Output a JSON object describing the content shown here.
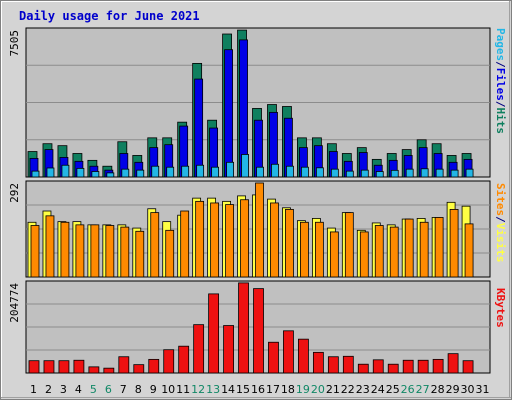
{
  "title": "Daily usage for June 2021",
  "colors": {
    "hits": "#0f7f5f",
    "files": "#0000e6",
    "pages": "#22b6e6",
    "visits": "#ffff44",
    "sites": "#ff8a00",
    "kbytes": "#ee1111",
    "weekend_day": "#118866",
    "weekday": "#000080",
    "title": "#0000cc",
    "plot_bg": "#c0c0c0",
    "frame_bg": "#d4d4d4"
  },
  "side_labels": {
    "top": [
      {
        "text": "Pages",
        "color": "#22b6e6"
      },
      {
        "text": "/",
        "color": "#000080"
      },
      {
        "text": "Files",
        "color": "#0000e6"
      },
      {
        "text": "/",
        "color": "#000080"
      },
      {
        "text": "Hits",
        "color": "#0f7f5f"
      }
    ],
    "middle": [
      {
        "text": "Sites",
        "color": "#ff8a00"
      },
      {
        "text": "/",
        "color": "#000080"
      },
      {
        "text": "Visits",
        "color": "#ffff44"
      }
    ],
    "bottom": [
      {
        "text": "KBytes",
        "color": "#ee1111"
      }
    ]
  },
  "chart_data": [
    {
      "type": "bar",
      "panel": "top",
      "ymax_label": "7505",
      "ylim": [
        0,
        7505
      ],
      "grid": true,
      "categories": [
        "1",
        "2",
        "3",
        "4",
        "5",
        "6",
        "7",
        "8",
        "9",
        "10",
        "11",
        "12",
        "13",
        "14",
        "15",
        "16",
        "17",
        "18",
        "19",
        "20",
        "21",
        "22",
        "23",
        "24",
        "25",
        "26",
        "27",
        "28",
        "29",
        "30",
        "31"
      ],
      "weekend_days": [
        "5",
        "6",
        "12",
        "13",
        "19",
        "20",
        "26",
        "27"
      ],
      "series": [
        {
          "name": "Hits",
          "values": [
            1300,
            1700,
            1600,
            1200,
            850,
            550,
            1800,
            1100,
            2000,
            2000,
            2800,
            5800,
            2900,
            7300,
            7500,
            3500,
            3700,
            3600,
            2000,
            2000,
            1700,
            1200,
            1500,
            900,
            1200,
            1400,
            1900,
            1700,
            1100,
            1200,
            0
          ]
        },
        {
          "name": "Files",
          "values": [
            950,
            1400,
            1000,
            800,
            550,
            350,
            1200,
            750,
            1500,
            1650,
            2600,
            5000,
            2500,
            6500,
            7000,
            2900,
            3300,
            3000,
            1500,
            1600,
            1300,
            800,
            1250,
            600,
            850,
            1100,
            1500,
            1200,
            750,
            900,
            0
          ]
        },
        {
          "name": "Pages",
          "values": [
            300,
            460,
            600,
            440,
            280,
            210,
            400,
            350,
            550,
            500,
            550,
            600,
            500,
            750,
            1150,
            500,
            650,
            550,
            500,
            470,
            400,
            300,
            350,
            280,
            340,
            400,
            420,
            400,
            350,
            400,
            0
          ]
        }
      ]
    },
    {
      "type": "bar",
      "panel": "middle",
      "ymax_label": "292",
      "ylim": [
        0,
        292
      ],
      "grid": true,
      "categories": [
        "1",
        "2",
        "3",
        "4",
        "5",
        "6",
        "7",
        "8",
        "9",
        "10",
        "11",
        "12",
        "13",
        "14",
        "15",
        "16",
        "17",
        "18",
        "19",
        "20",
        "21",
        "22",
        "23",
        "24",
        "25",
        "26",
        "27",
        "28",
        "29",
        "30",
        "31"
      ],
      "series": [
        {
          "name": "Visits",
          "values": [
            170,
            205,
            172,
            172,
            162,
            162,
            162,
            152,
            212,
            172,
            192,
            245,
            245,
            235,
            252,
            255,
            242,
            215,
            175,
            182,
            152,
            200,
            145,
            168,
            162,
            180,
            182,
            185,
            232,
            220,
            0
          ]
        },
        {
          "name": "Sites",
          "values": [
            160,
            190,
            170,
            162,
            162,
            160,
            155,
            142,
            200,
            145,
            205,
            235,
            230,
            225,
            240,
            292,
            230,
            210,
            170,
            170,
            140,
            200,
            140,
            160,
            155,
            180,
            170,
            185,
            210,
            165,
            0
          ]
        }
      ]
    },
    {
      "type": "bar",
      "panel": "bottom",
      "ymax_label": "204774",
      "ylim": [
        0,
        204774
      ],
      "grid": true,
      "categories": [
        "1",
        "2",
        "3",
        "4",
        "5",
        "6",
        "7",
        "8",
        "9",
        "10",
        "11",
        "12",
        "13",
        "14",
        "15",
        "16",
        "17",
        "18",
        "19",
        "20",
        "21",
        "22",
        "23",
        "24",
        "25",
        "26",
        "27",
        "28",
        "29",
        "30",
        "31"
      ],
      "series": [
        {
          "name": "KBytes",
          "values": [
            28000,
            28000,
            28000,
            29000,
            14000,
            11000,
            37000,
            19000,
            31000,
            53000,
            61000,
            110000,
            180000,
            108000,
            205000,
            192000,
            70000,
            96000,
            77000,
            47000,
            37000,
            38000,
            20000,
            30000,
            20000,
            29000,
            29000,
            31000,
            44000,
            28000,
            0
          ]
        }
      ]
    }
  ]
}
